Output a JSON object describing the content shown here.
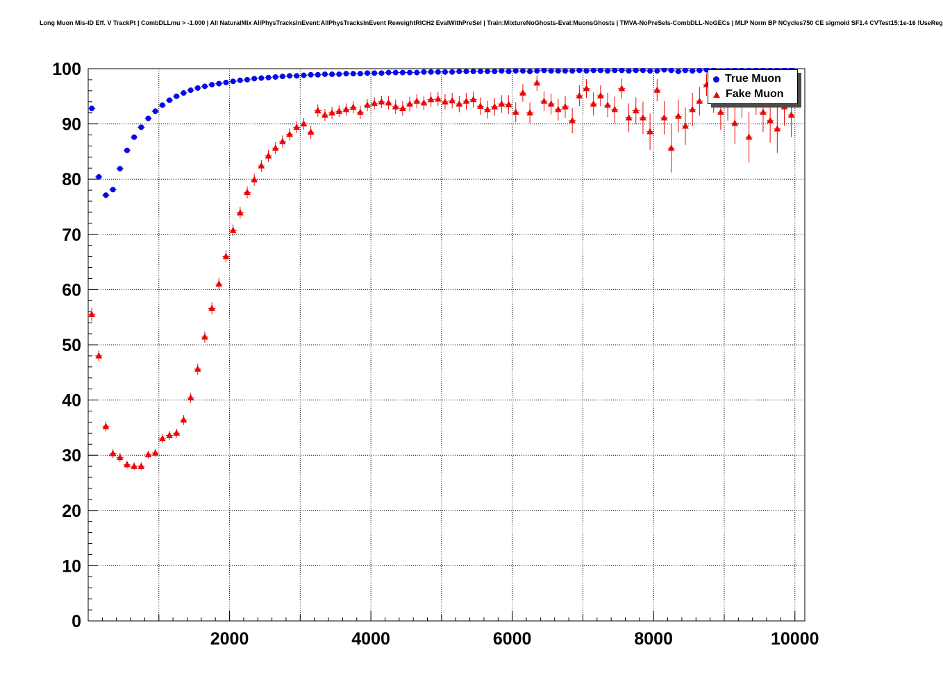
{
  "chart_data": {
    "type": "scatter",
    "title": "Long Muon Mis-ID Eff. V TrackPt | CombDLLmu > -1.000 | All NaturalMix AllPhysTracksInEvent:AllPhysTracksInEvent ReweightRICH2 EvalWithPreSel | Train:MixtureNoGhosts-Eval:MuonsGhosts | TMVA-NoPreSels-CombDLL-NoGECs | MLP Norm BP NCycles750 CE sigmoid SF1.4 CVTest15:1e-16 !UseReg",
    "xlabel": "",
    "ylabel": "",
    "xlim": [
      0,
      10140
    ],
    "ylim": [
      0,
      100
    ],
    "x_ticks": [
      2000,
      4000,
      6000,
      8000,
      10000
    ],
    "y_ticks": [
      0,
      10,
      20,
      30,
      40,
      50,
      60,
      70,
      80,
      90,
      100
    ],
    "x_grid_step": 1000,
    "y_grid_step": 10,
    "grid": true,
    "grid_style": "dotted",
    "bin_half_width": 50,
    "legend_position": "top-right",
    "series": [
      {
        "name": "True Muon",
        "marker": "circle",
        "color": "#0808e8",
        "points": [
          [
            50,
            92.8,
            0.3
          ],
          [
            150,
            80.4,
            0.4
          ],
          [
            250,
            77.1,
            0.4
          ],
          [
            350,
            78.1,
            0.4
          ],
          [
            450,
            81.9,
            0.4
          ],
          [
            550,
            85.2,
            0.3
          ],
          [
            650,
            87.6,
            0.3
          ],
          [
            750,
            89.4,
            0.3
          ],
          [
            850,
            91.0,
            0.25
          ],
          [
            950,
            92.3,
            0.25
          ],
          [
            1050,
            93.4,
            0.2
          ],
          [
            1150,
            94.3,
            0.2
          ],
          [
            1250,
            95.0,
            0.2
          ],
          [
            1350,
            95.6,
            0.2
          ],
          [
            1450,
            96.1,
            0.15
          ],
          [
            1550,
            96.5,
            0.15
          ],
          [
            1650,
            96.8,
            0.15
          ],
          [
            1750,
            97.1,
            0.15
          ],
          [
            1850,
            97.3,
            0.15
          ],
          [
            1950,
            97.5,
            0.1
          ],
          [
            2050,
            97.7,
            0.1
          ],
          [
            2150,
            97.9,
            0.1
          ],
          [
            2250,
            98.0,
            0.1
          ],
          [
            2350,
            98.2,
            0.1
          ],
          [
            2450,
            98.3,
            0.1
          ],
          [
            2550,
            98.4,
            0.1
          ],
          [
            2650,
            98.5,
            0.1
          ],
          [
            2750,
            98.6,
            0.1
          ],
          [
            2850,
            98.7,
            0.1
          ],
          [
            2950,
            98.7,
            0.1
          ],
          [
            3050,
            98.8,
            0.1
          ],
          [
            3150,
            98.9,
            0.1
          ],
          [
            3250,
            98.9,
            0.1
          ],
          [
            3350,
            99.0,
            0.1
          ],
          [
            3450,
            99.0,
            0.1
          ],
          [
            3550,
            99.0,
            0.1
          ],
          [
            3650,
            99.1,
            0.1
          ],
          [
            3750,
            99.1,
            0.1
          ],
          [
            3850,
            99.1,
            0.1
          ],
          [
            3950,
            99.2,
            0.1
          ],
          [
            4050,
            99.2,
            0.1
          ],
          [
            4150,
            99.2,
            0.1
          ],
          [
            4250,
            99.3,
            0.1
          ],
          [
            4350,
            99.3,
            0.1
          ],
          [
            4450,
            99.3,
            0.1
          ],
          [
            4550,
            99.3,
            0.1
          ],
          [
            4650,
            99.3,
            0.1
          ],
          [
            4750,
            99.4,
            0.1
          ],
          [
            4850,
            99.4,
            0.1
          ],
          [
            4950,
            99.4,
            0.1
          ],
          [
            5050,
            99.4,
            0.1
          ],
          [
            5150,
            99.4,
            0.1
          ],
          [
            5250,
            99.5,
            0.1
          ],
          [
            5350,
            99.5,
            0.1
          ],
          [
            5450,
            99.5,
            0.1
          ],
          [
            5550,
            99.5,
            0.1
          ],
          [
            5650,
            99.5,
            0.1
          ],
          [
            5750,
            99.5,
            0.15
          ],
          [
            5850,
            99.6,
            0.15
          ],
          [
            5950,
            99.5,
            0.15
          ],
          [
            6050,
            99.6,
            0.15
          ],
          [
            6150,
            99.6,
            0.15
          ],
          [
            6250,
            99.5,
            0.15
          ],
          [
            6350,
            99.6,
            0.15
          ],
          [
            6450,
            99.7,
            0.15
          ],
          [
            6550,
            99.6,
            0.15
          ],
          [
            6650,
            99.6,
            0.15
          ],
          [
            6750,
            99.6,
            0.15
          ],
          [
            6850,
            99.6,
            0.2
          ],
          [
            6950,
            99.7,
            0.2
          ],
          [
            7050,
            99.6,
            0.2
          ],
          [
            7150,
            99.7,
            0.2
          ],
          [
            7250,
            99.7,
            0.2
          ],
          [
            7350,
            99.6,
            0.2
          ],
          [
            7450,
            99.7,
            0.2
          ],
          [
            7550,
            99.7,
            0.2
          ],
          [
            7650,
            99.6,
            0.25
          ],
          [
            7750,
            99.7,
            0.25
          ],
          [
            7850,
            99.7,
            0.25
          ],
          [
            7950,
            99.6,
            0.25
          ],
          [
            8050,
            99.6,
            0.3
          ],
          [
            8150,
            99.8,
            0.25
          ],
          [
            8250,
            99.7,
            0.3
          ],
          [
            8350,
            99.5,
            0.35
          ],
          [
            8450,
            99.7,
            0.3
          ],
          [
            8550,
            99.6,
            0.35
          ],
          [
            8650,
            99.7,
            0.3
          ],
          [
            8750,
            99.8,
            0.3
          ],
          [
            8850,
            99.8,
            0.3
          ],
          [
            8950,
            99.6,
            0.4
          ],
          [
            9050,
            99.7,
            0.35
          ],
          [
            9150,
            99.8,
            0.3
          ],
          [
            9250,
            99.7,
            0.35
          ],
          [
            9350,
            99.7,
            0.4
          ],
          [
            9450,
            99.8,
            0.35
          ],
          [
            9550,
            99.8,
            0.35
          ],
          [
            9650,
            99.7,
            0.4
          ],
          [
            9750,
            99.8,
            0.4
          ],
          [
            9850,
            99.8,
            0.4
          ],
          [
            9950,
            99.9,
            0.3
          ]
        ]
      },
      {
        "name": "Fake Muon",
        "marker": "triangle",
        "color": "#e80808",
        "points": [
          [
            50,
            55.5,
            1.2
          ],
          [
            150,
            48.0,
            1.0
          ],
          [
            250,
            35.2,
            0.9
          ],
          [
            350,
            30.3,
            0.8
          ],
          [
            450,
            29.6,
            0.8
          ],
          [
            550,
            28.3,
            0.7
          ],
          [
            650,
            28.0,
            0.7
          ],
          [
            750,
            28.0,
            0.7
          ],
          [
            850,
            30.1,
            0.7
          ],
          [
            950,
            30.4,
            0.7
          ],
          [
            1050,
            33.0,
            0.8
          ],
          [
            1150,
            33.6,
            0.8
          ],
          [
            1250,
            34.0,
            0.8
          ],
          [
            1350,
            36.4,
            0.9
          ],
          [
            1450,
            40.4,
            0.9
          ],
          [
            1550,
            45.6,
            1.0
          ],
          [
            1650,
            51.4,
            1.0
          ],
          [
            1750,
            56.6,
            1.1
          ],
          [
            1850,
            61.0,
            1.1
          ],
          [
            1950,
            66.0,
            1.1
          ],
          [
            2050,
            70.7,
            1.1
          ],
          [
            2150,
            73.9,
            1.1
          ],
          [
            2250,
            77.6,
            1.1
          ],
          [
            2350,
            79.9,
            1.1
          ],
          [
            2450,
            82.4,
            1.1
          ],
          [
            2550,
            84.2,
            1.1
          ],
          [
            2650,
            85.6,
            1.1
          ],
          [
            2750,
            86.8,
            1.1
          ],
          [
            2850,
            88.1,
            1.1
          ],
          [
            2950,
            89.4,
            1.1
          ],
          [
            3050,
            90.0,
            1.1
          ],
          [
            3150,
            88.5,
            1.2
          ],
          [
            3250,
            92.4,
            1.1
          ],
          [
            3350,
            91.6,
            1.1
          ],
          [
            3450,
            92.0,
            1.1
          ],
          [
            3550,
            92.3,
            1.1
          ],
          [
            3650,
            92.6,
            1.1
          ],
          [
            3750,
            93.0,
            1.1
          ],
          [
            3850,
            92.1,
            1.2
          ],
          [
            3950,
            93.4,
            1.1
          ],
          [
            4050,
            93.7,
            1.1
          ],
          [
            4150,
            94.0,
            1.1
          ],
          [
            4250,
            93.8,
            1.2
          ],
          [
            4350,
            93.1,
            1.3
          ],
          [
            4450,
            92.8,
            1.3
          ],
          [
            4550,
            93.6,
            1.3
          ],
          [
            4650,
            94.1,
            1.3
          ],
          [
            4750,
            93.8,
            1.3
          ],
          [
            4850,
            94.4,
            1.3
          ],
          [
            4950,
            94.5,
            1.3
          ],
          [
            5050,
            94.0,
            1.4
          ],
          [
            5150,
            94.2,
            1.4
          ],
          [
            5250,
            93.6,
            1.5
          ],
          [
            5350,
            94.1,
            1.5
          ],
          [
            5450,
            94.4,
            1.5
          ],
          [
            5550,
            93.2,
            1.6
          ],
          [
            5650,
            92.6,
            1.6
          ],
          [
            5750,
            93.1,
            1.6
          ],
          [
            5850,
            93.6,
            1.6
          ],
          [
            5950,
            93.5,
            1.7
          ],
          [
            6050,
            92.1,
            1.8
          ],
          [
            6150,
            95.6,
            1.6
          ],
          [
            6250,
            92.0,
            1.9
          ],
          [
            6350,
            97.4,
            1.4
          ],
          [
            6450,
            94.1,
            1.8
          ],
          [
            6550,
            93.6,
            1.9
          ],
          [
            6650,
            92.6,
            2.0
          ],
          [
            6750,
            93.1,
            2.0
          ],
          [
            6850,
            90.6,
            2.3
          ],
          [
            6950,
            95.1,
            1.9
          ],
          [
            7050,
            96.4,
            1.7
          ],
          [
            7150,
            93.6,
            2.1
          ],
          [
            7250,
            95.1,
            1.9
          ],
          [
            7350,
            93.4,
            2.2
          ],
          [
            7450,
            92.6,
            2.4
          ],
          [
            7550,
            96.4,
            1.8
          ],
          [
            7650,
            91.1,
            2.6
          ],
          [
            7750,
            92.4,
            2.4
          ],
          [
            7850,
            91.1,
            2.9
          ],
          [
            7950,
            88.6,
            3.3
          ],
          [
            8050,
            96.1,
            2.0
          ],
          [
            8150,
            91.1,
            3.0
          ],
          [
            8250,
            85.6,
            4.4
          ],
          [
            8350,
            91.4,
            3.0
          ],
          [
            8450,
            89.6,
            3.4
          ],
          [
            8550,
            92.6,
            3.0
          ],
          [
            8650,
            94.1,
            2.6
          ],
          [
            8750,
            97.1,
            2.0
          ],
          [
            8850,
            94.6,
            2.6
          ],
          [
            8950,
            92.1,
            3.2
          ],
          [
            9050,
            93.6,
            3.0
          ],
          [
            9150,
            90.1,
            3.8
          ],
          [
            9250,
            94.1,
            3.0
          ],
          [
            9350,
            87.6,
            4.6
          ],
          [
            9450,
            94.6,
            3.0
          ],
          [
            9550,
            92.1,
            3.6
          ],
          [
            9650,
            90.6,
            4.0
          ],
          [
            9750,
            89.1,
            4.4
          ],
          [
            9850,
            93.1,
            3.4
          ],
          [
            9950,
            91.6,
            4.0
          ]
        ]
      }
    ]
  },
  "legend": {
    "items": [
      {
        "label": "True Muon",
        "marker": "circle",
        "color": "#0808e8"
      },
      {
        "label": "Fake Muon",
        "marker": "triangle",
        "color": "#e80808"
      }
    ]
  }
}
